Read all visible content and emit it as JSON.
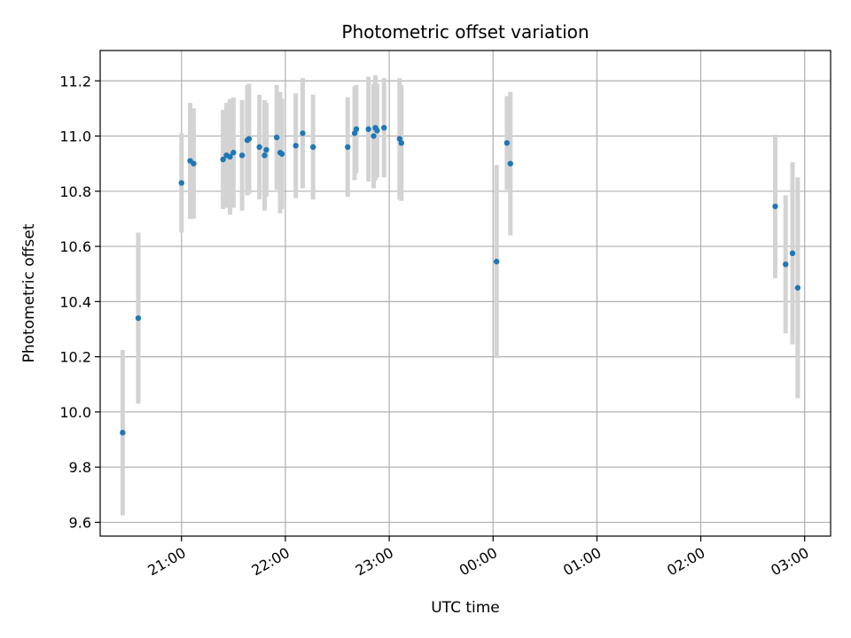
{
  "chart_data": {
    "type": "scatter",
    "title": "Photometric offset variation",
    "xlabel": "UTC time",
    "ylabel": "Photometric offset",
    "x_ticks": [
      "21:00",
      "22:00",
      "23:00",
      "00:00",
      "01:00",
      "02:00",
      "03:00"
    ],
    "y_ticks": [
      "9.6",
      "9.8",
      "10.0",
      "10.2",
      "10.4",
      "10.6",
      "10.8",
      "11.0",
      "11.2"
    ],
    "xlim": [
      "20:13",
      "03:15"
    ],
    "ylim": [
      9.55,
      11.31
    ],
    "grid": true,
    "legend": "none",
    "colors": {
      "point": "#1f77b4",
      "errorbar": "#d3d3d3",
      "grid": "#b0b0b0"
    },
    "points": [
      {
        "x": "20:26",
        "y": 9.925,
        "err": 0.3
      },
      {
        "x": "20:35",
        "y": 10.34,
        "err": 0.31
      },
      {
        "x": "21:00",
        "y": 10.83,
        "err": 0.18
      },
      {
        "x": "21:05",
        "y": 10.91,
        "err": 0.21
      },
      {
        "x": "21:07",
        "y": 10.9,
        "err": 0.2
      },
      {
        "x": "21:24",
        "y": 10.915,
        "err": 0.18
      },
      {
        "x": "21:26",
        "y": 10.93,
        "err": 0.19
      },
      {
        "x": "21:28",
        "y": 10.925,
        "err": 0.21
      },
      {
        "x": "21:30",
        "y": 10.94,
        "err": 0.2
      },
      {
        "x": "21:35",
        "y": 10.93,
        "err": 0.2
      },
      {
        "x": "21:38",
        "y": 10.985,
        "err": 0.2
      },
      {
        "x": "21:39",
        "y": 10.99,
        "err": 0.2
      },
      {
        "x": "21:45",
        "y": 10.96,
        "err": 0.19
      },
      {
        "x": "21:48",
        "y": 10.93,
        "err": 0.2
      },
      {
        "x": "21:49",
        "y": 10.95,
        "err": 0.17
      },
      {
        "x": "21:55",
        "y": 10.995,
        "err": 0.19
      },
      {
        "x": "21:57",
        "y": 10.94,
        "err": 0.22
      },
      {
        "x": "21:58",
        "y": 10.935,
        "err": 0.2
      },
      {
        "x": "22:06",
        "y": 10.965,
        "err": 0.19
      },
      {
        "x": "22:10",
        "y": 11.01,
        "err": 0.2
      },
      {
        "x": "22:16",
        "y": 10.96,
        "err": 0.19
      },
      {
        "x": "22:36",
        "y": 10.96,
        "err": 0.18
      },
      {
        "x": "22:40",
        "y": 11.01,
        "err": 0.17
      },
      {
        "x": "22:41",
        "y": 11.025,
        "err": 0.16
      },
      {
        "x": "22:48",
        "y": 11.025,
        "err": 0.19
      },
      {
        "x": "22:51",
        "y": 11.0,
        "err": 0.19
      },
      {
        "x": "22:52",
        "y": 11.03,
        "err": 0.19
      },
      {
        "x": "22:53",
        "y": 11.02,
        "err": 0.17
      },
      {
        "x": "22:57",
        "y": 11.03,
        "err": 0.18
      },
      {
        "x": "23:06",
        "y": 10.99,
        "err": 0.22
      },
      {
        "x": "23:07",
        "y": 10.975,
        "err": 0.21
      },
      {
        "x": "00:02",
        "y": 10.545,
        "err": 0.35
      },
      {
        "x": "00:08",
        "y": 10.975,
        "err": 0.17
      },
      {
        "x": "00:10",
        "y": 10.9,
        "err": 0.26
      },
      {
        "x": "02:43",
        "y": 10.745,
        "err": 0.26
      },
      {
        "x": "02:49",
        "y": 10.535,
        "err": 0.25
      },
      {
        "x": "02:53",
        "y": 10.575,
        "err": 0.33
      },
      {
        "x": "02:56",
        "y": 10.45,
        "err": 0.4
      }
    ]
  }
}
